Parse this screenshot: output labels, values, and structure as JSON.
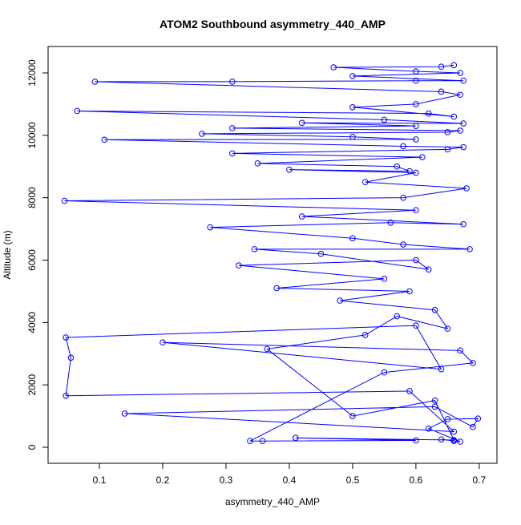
{
  "chart_data": {
    "type": "line",
    "title": "ATOM2 Southbound asymmetry_440_AMP",
    "x_label": "asymmetry_440_AMP",
    "y_label": "Altitude (m)",
    "markers": true,
    "color": "blue",
    "x": [
      0.66,
      0.64,
      0.67,
      0.62,
      0.65,
      0.698,
      0.69,
      0.63,
      0.14,
      0.66,
      0.59,
      0.047,
      0.055,
      0.047,
      0.6,
      0.64,
      0.2,
      0.67,
      0.69,
      0.55,
      0.338,
      0.358,
      0.6,
      0.41,
      0.66,
      0.63,
      0.5,
      0.365,
      0.52,
      0.57,
      0.65,
      0.63,
      0.48,
      0.59,
      0.38,
      0.55,
      0.32,
      0.6,
      0.62,
      0.45,
      0.345,
      0.685,
      0.58,
      0.5,
      0.275,
      0.56,
      0.675,
      0.42,
      0.6,
      0.045,
      0.58,
      0.68,
      0.52,
      0.6,
      0.4,
      0.59,
      0.57,
      0.35,
      0.61,
      0.31,
      0.65,
      0.675,
      0.58,
      0.108,
      0.6,
      0.5,
      0.262,
      0.65,
      0.67,
      0.31,
      0.6,
      0.42,
      0.675,
      0.55,
      0.065,
      0.62,
      0.66,
      0.5,
      0.6,
      0.67,
      0.64,
      0.093,
      0.31,
      0.6,
      0.675,
      0.5,
      0.67,
      0.6,
      0.47,
      0.64,
      0.66
    ],
    "values": [
      200,
      250,
      180,
      600,
      900,
      920,
      650,
      1300,
      1080,
      500,
      1800,
      1650,
      2870,
      3520,
      3900,
      2500,
      3360,
      3100,
      2700,
      2400,
      200,
      200,
      220,
      300,
      230,
      1500,
      1000,
      3150,
      3600,
      4200,
      3800,
      4400,
      4700,
      5000,
      5100,
      5400,
      5830,
      6000,
      5700,
      6200,
      6350,
      6350,
      6500,
      6700,
      7050,
      7200,
      7150,
      7400,
      7600,
      7900,
      8000,
      8300,
      8500,
      8800,
      8900,
      8850,
      9000,
      9100,
      9300,
      9420,
      9550,
      9620,
      9650,
      9860,
      9870,
      9950,
      10050,
      10100,
      10150,
      10230,
      10300,
      10400,
      10380,
      10500,
      10780,
      10700,
      10600,
      10900,
      11000,
      11300,
      11400,
      11720,
      11720,
      11750,
      11750,
      11900,
      12000,
      12050,
      12180,
      12200,
      12250
    ],
    "xlim": [
      0.019,
      0.728
    ],
    "xticks": [
      0.1,
      0.2,
      0.3,
      0.4,
      0.5,
      0.6,
      0.7
    ],
    "ylim": [
      -514,
      12848
    ],
    "yticks": [
      0,
      2000,
      4000,
      6000,
      8000,
      10000,
      12000
    ]
  }
}
